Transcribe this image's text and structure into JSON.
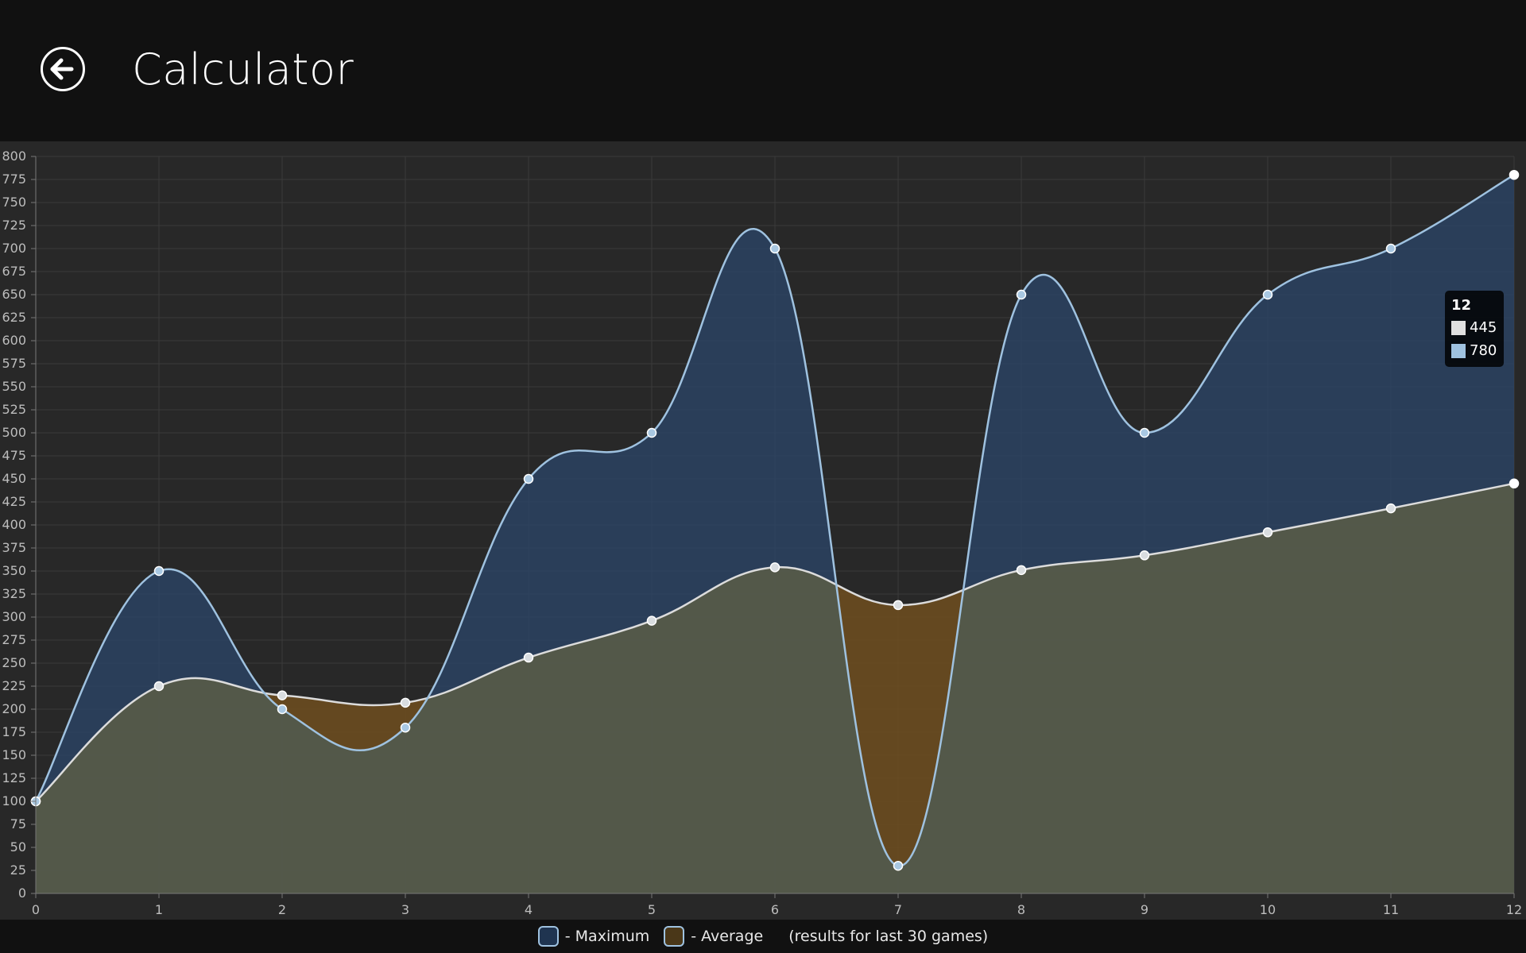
{
  "app": {
    "title": "Calculator"
  },
  "icons": {
    "back": "back-arrow-icon"
  },
  "legend": {
    "maximum_label": "- Maximum",
    "average_label": "- Average",
    "note": "(results for last 30 games)"
  },
  "tooltip": {
    "title": "12",
    "average_value": "445",
    "maximum_value": "780"
  },
  "colors": {
    "maximum_fill": "rgba(43,70,105,0.75)",
    "maximum_line": "#9fc2e0",
    "average_fill": "rgba(80,90,80,0.85)",
    "average_line": "#dcdcdc",
    "below_fill": "rgba(110,78,30,0.85)",
    "legend_maximum": "#1f3450",
    "legend_average": "#4a3718"
  },
  "chart_data": {
    "type": "area",
    "x": [
      0,
      1,
      2,
      3,
      4,
      5,
      6,
      7,
      8,
      9,
      10,
      11,
      12
    ],
    "series": [
      {
        "name": "Maximum",
        "values": [
          100,
          350,
          200,
          180,
          450,
          500,
          700,
          30,
          650,
          500,
          650,
          700,
          780
        ]
      },
      {
        "name": "Average",
        "values": [
          100,
          225,
          215,
          207,
          256,
          296,
          354,
          313,
          351,
          367,
          392,
          418,
          445
        ]
      }
    ],
    "xlim": [
      0,
      12
    ],
    "ylim": [
      0,
      800
    ],
    "ytick_step": 25,
    "grid": true,
    "legend": "bottom",
    "title": "",
    "xlabel": "",
    "ylabel": ""
  }
}
